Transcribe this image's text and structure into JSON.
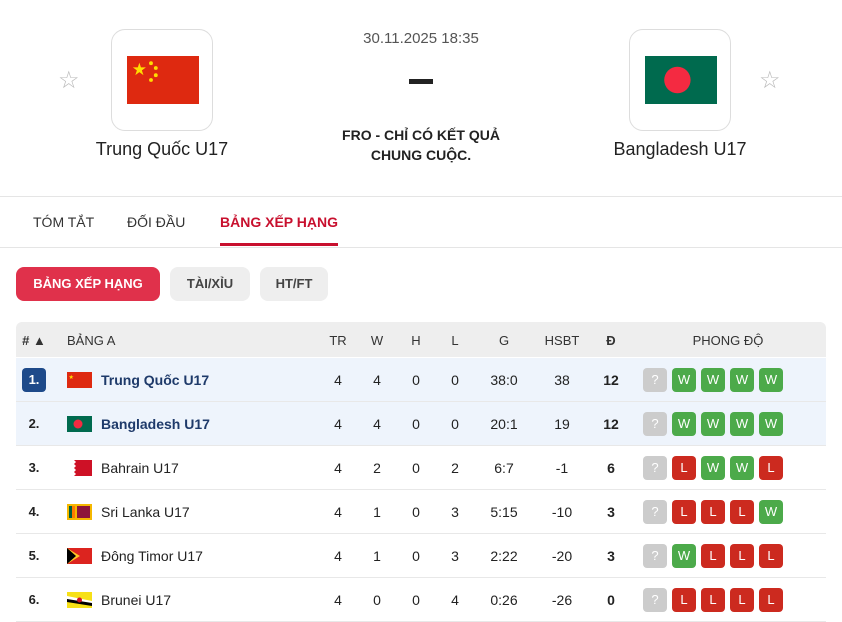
{
  "match": {
    "date": "30.11.2025 18:35",
    "score": "-",
    "status": "FRO - CHỈ CÓ KẾT QUẢ CHUNG CUỘC.",
    "home": "Trung Quốc U17",
    "away": "Bangladesh U17"
  },
  "tabs": [
    "TÓM TẮT",
    "ĐỐI ĐẦU",
    "BẢNG XẾP HẠNG"
  ],
  "pills": [
    "BẢNG XẾP HẠNG",
    "TÀI/XỈU",
    "HT/FT"
  ],
  "table": {
    "headers": {
      "rank": "#",
      "group": "BẢNG A",
      "tr": "TR",
      "w": "W",
      "h": "H",
      "l": "L",
      "g": "G",
      "hsbt": "HSBT",
      "d": "Đ",
      "form": "PHONG ĐỘ"
    },
    "rows": [
      {
        "rank": "1.",
        "name": "Trung Quốc U17",
        "flag": "china",
        "tr": "4",
        "w": "4",
        "h": "0",
        "l": "0",
        "g": "38:0",
        "hsbt": "38",
        "d": "12",
        "form": [
          "?",
          "W",
          "W",
          "W",
          "W"
        ]
      },
      {
        "rank": "2.",
        "name": "Bangladesh U17",
        "flag": "bangladesh",
        "tr": "4",
        "w": "4",
        "h": "0",
        "l": "0",
        "g": "20:1",
        "hsbt": "19",
        "d": "12",
        "form": [
          "?",
          "W",
          "W",
          "W",
          "W"
        ]
      },
      {
        "rank": "3.",
        "name": "Bahrain U17",
        "flag": "bahrain",
        "tr": "4",
        "w": "2",
        "h": "0",
        "l": "2",
        "g": "6:7",
        "hsbt": "-1",
        "d": "6",
        "form": [
          "?",
          "L",
          "W",
          "W",
          "L"
        ]
      },
      {
        "rank": "4.",
        "name": "Sri Lanka U17",
        "flag": "srilanka",
        "tr": "4",
        "w": "1",
        "h": "0",
        "l": "3",
        "g": "5:15",
        "hsbt": "-10",
        "d": "3",
        "form": [
          "?",
          "L",
          "L",
          "L",
          "W"
        ]
      },
      {
        "rank": "5.",
        "name": "Đông Timor U17",
        "flag": "timor",
        "tr": "4",
        "w": "1",
        "h": "0",
        "l": "3",
        "g": "2:22",
        "hsbt": "-20",
        "d": "3",
        "form": [
          "?",
          "W",
          "L",
          "L",
          "L"
        ]
      },
      {
        "rank": "6.",
        "name": "Brunei U17",
        "flag": "brunei",
        "tr": "4",
        "w": "0",
        "h": "0",
        "l": "4",
        "g": "0:26",
        "hsbt": "-26",
        "d": "0",
        "form": [
          "?",
          "L",
          "L",
          "L",
          "L"
        ]
      }
    ]
  },
  "colors": {
    "accent": "#e0314b",
    "win": "#4caa4a",
    "loss": "#cc2a1f",
    "leader": "#1e4a8a"
  }
}
